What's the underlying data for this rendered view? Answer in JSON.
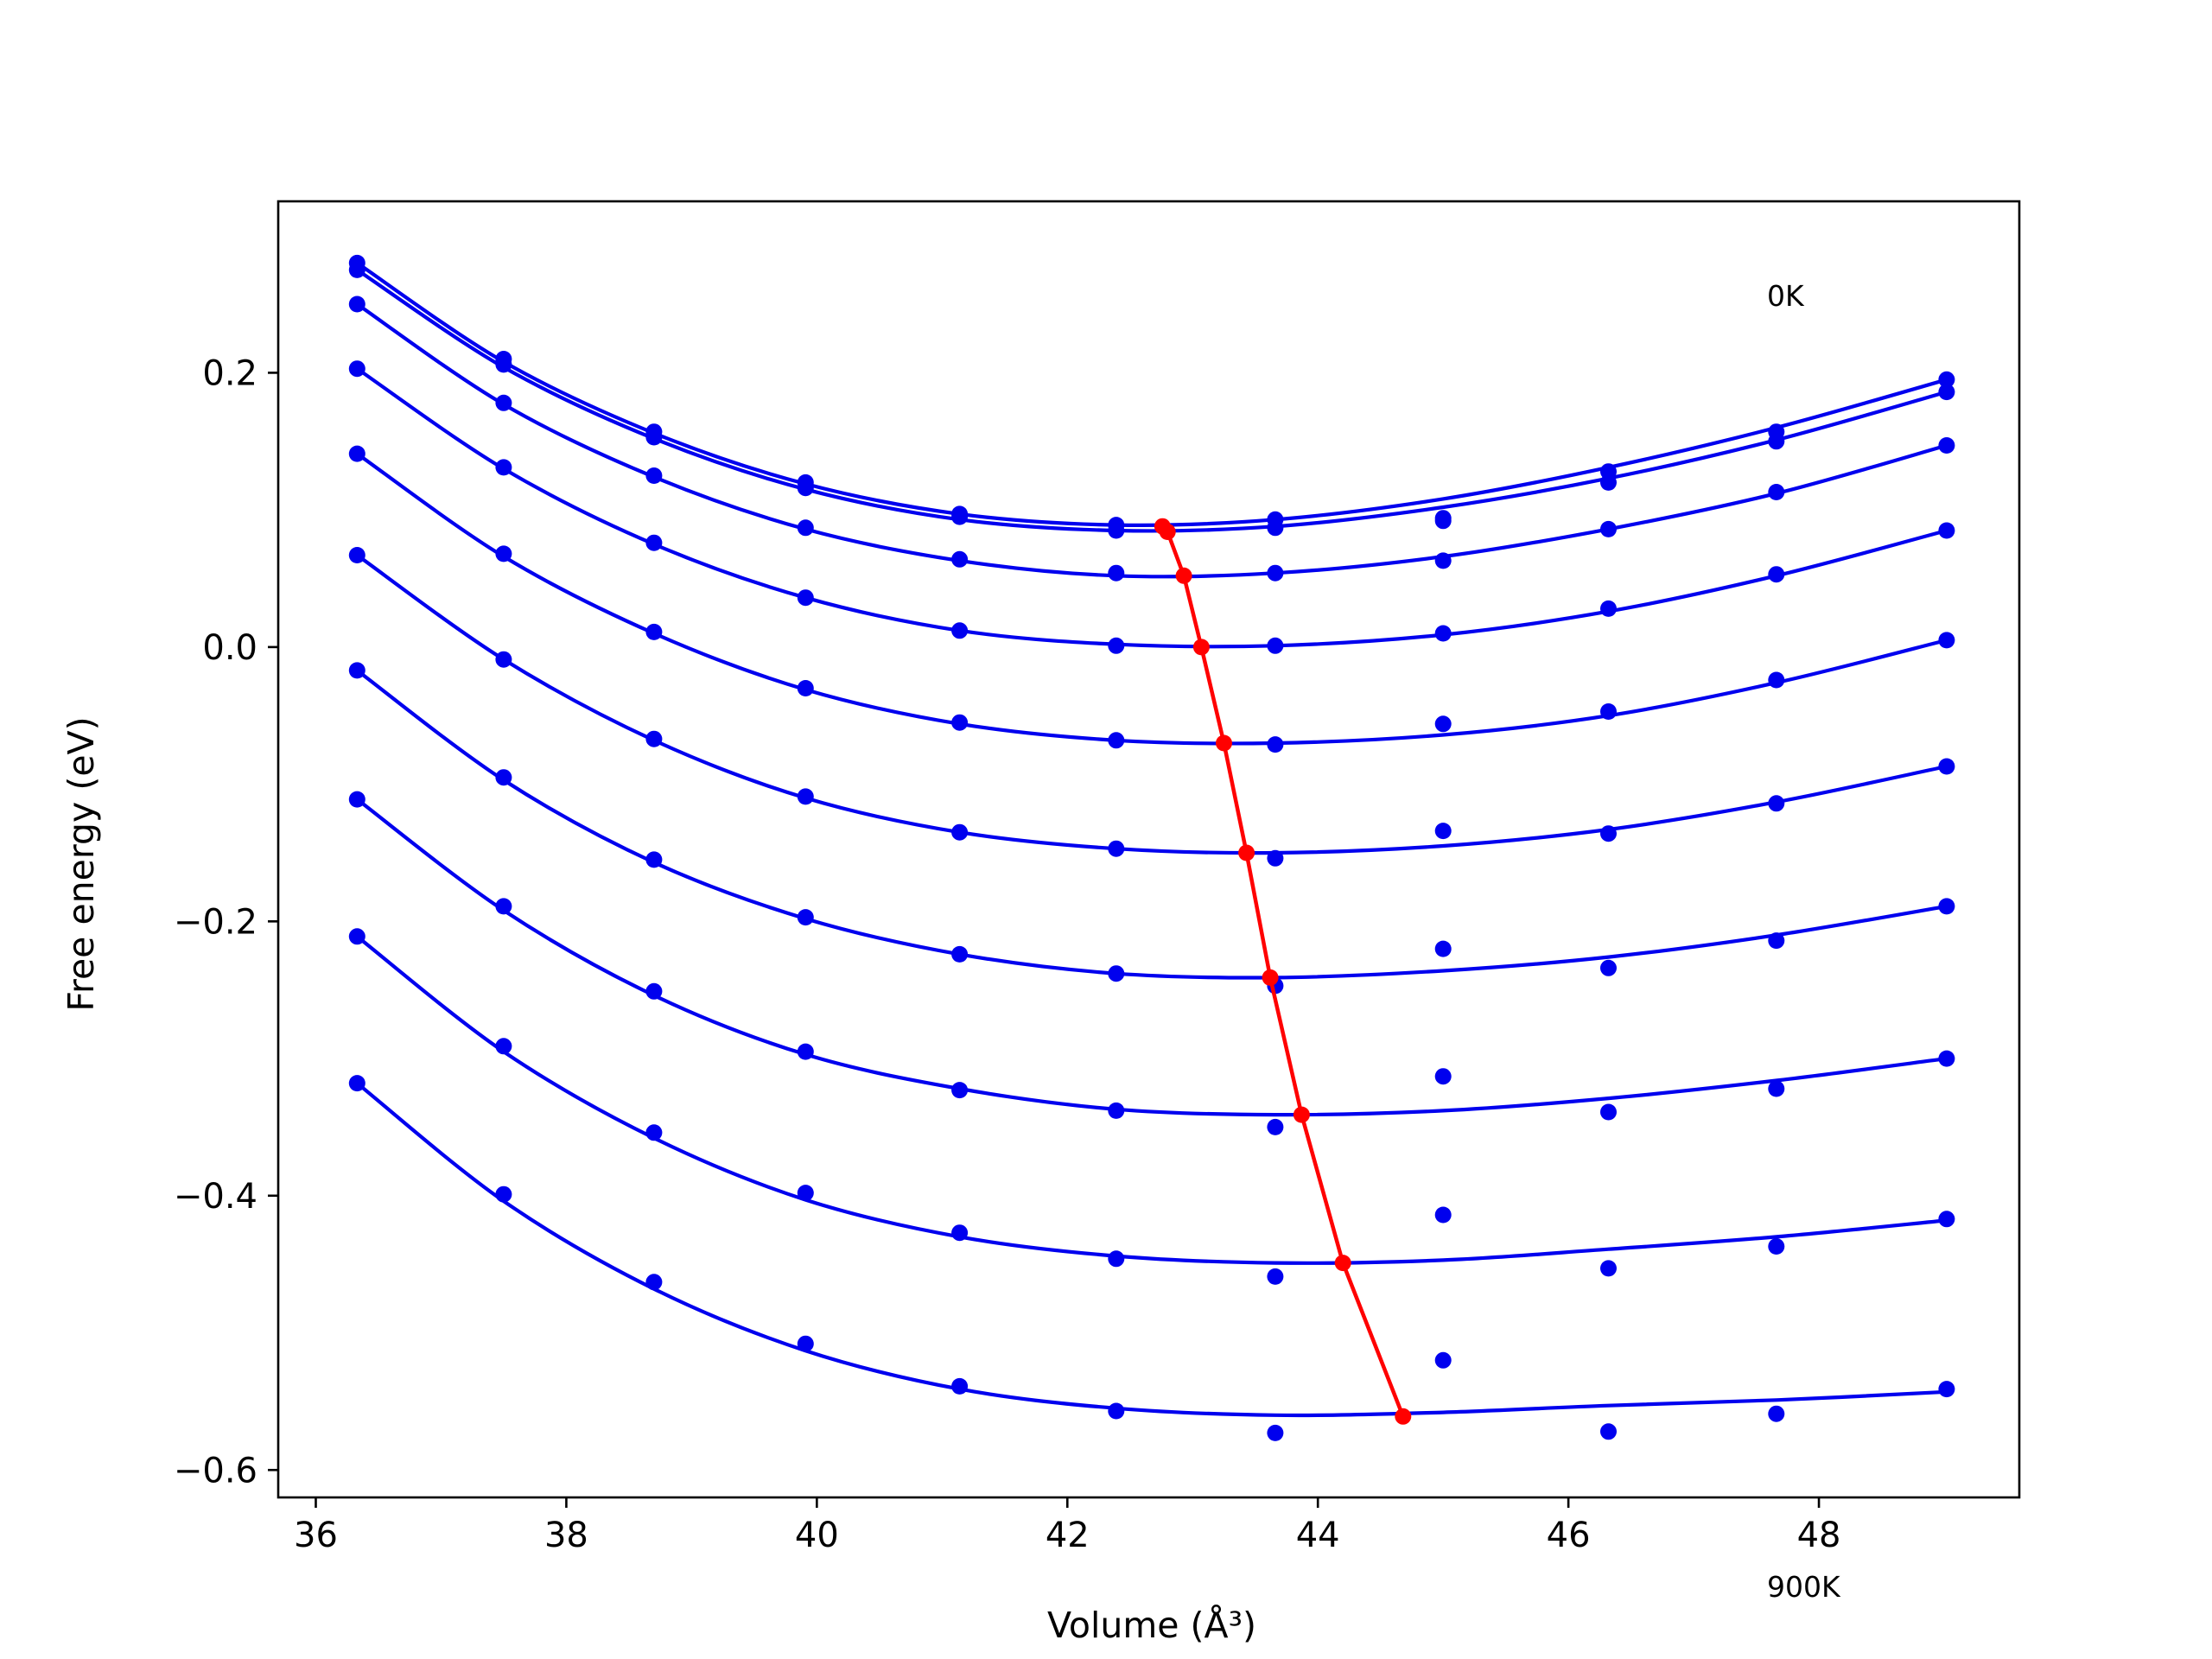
{
  "chart_data": {
    "type": "scatter",
    "xlabel": "Volume (Å³)",
    "ylabel": "Free energy (eV)",
    "xlim": [
      35.7,
      49.6
    ],
    "ylim": [
      -0.62,
      0.325
    ],
    "x_ticks": [
      36,
      38,
      40,
      42,
      44,
      46,
      48
    ],
    "y_ticks": [
      -0.6,
      -0.4,
      -0.2,
      0.0,
      0.2
    ],
    "x_tick_labels": [
      "36",
      "38",
      "40",
      "42",
      "44",
      "46",
      "48"
    ],
    "y_tick_labels": [
      "−0.6",
      "−0.4",
      "−0.2",
      "0.0",
      "0.2"
    ],
    "grid": false,
    "annotations": {
      "top": "0K",
      "bottom": "900K"
    },
    "colors": {
      "data": "#0000ee",
      "equilibrium": "#ff0000",
      "frame": "#000000"
    },
    "x": [
      36.33,
      37.5,
      38.7,
      39.91,
      41.14,
      42.39,
      43.66,
      45.0,
      46.32,
      47.66,
      49.02
    ],
    "series": [
      {
        "values": [
          0.28,
          0.21,
          0.157,
          0.12,
          0.097,
          0.089,
          0.093,
          0.094,
          0.128,
          0.157,
          0.195
        ],
        "fit": [
          0.28,
          0.208,
          0.156,
          0.119,
          0.097,
          0.089,
          0.093,
          0.108,
          0.131,
          0.16,
          0.195
        ]
      },
      {
        "values": [
          0.275,
          0.206,
          0.153,
          0.116,
          0.095,
          0.085,
          0.087,
          0.092,
          0.12,
          0.15,
          0.186
        ],
        "fit": [
          0.275,
          0.204,
          0.152,
          0.115,
          0.093,
          0.085,
          0.088,
          0.102,
          0.123,
          0.151,
          0.186
        ]
      },
      {
        "values": [
          0.25,
          0.178,
          0.125,
          0.087,
          0.064,
          0.054,
          0.054,
          0.063,
          0.086,
          0.113,
          0.147
        ],
        "fit": [
          0.25,
          0.177,
          0.124,
          0.086,
          0.063,
          0.052,
          0.054,
          0.066,
          0.086,
          0.112,
          0.147
        ]
      },
      {
        "values": [
          0.203,
          0.131,
          0.076,
          0.036,
          0.012,
          0.001,
          0.001,
          0.01,
          0.028,
          0.053,
          0.085
        ],
        "fit": [
          0.203,
          0.13,
          0.075,
          0.036,
          0.012,
          0.002,
          0.001,
          0.009,
          0.026,
          0.052,
          0.085
        ]
      },
      {
        "values": [
          0.141,
          0.068,
          0.011,
          -0.03,
          -0.055,
          -0.068,
          -0.071,
          -0.056,
          -0.047,
          -0.024,
          0.005
        ],
        "fit": [
          0.141,
          0.066,
          0.01,
          -0.031,
          -0.056,
          -0.068,
          -0.07,
          -0.064,
          -0.05,
          -0.026,
          0.005
        ]
      },
      {
        "values": [
          0.067,
          -0.009,
          -0.067,
          -0.109,
          -0.135,
          -0.147,
          -0.154,
          -0.134,
          -0.136,
          -0.114,
          -0.087
        ],
        "fit": [
          0.067,
          -0.009,
          -0.068,
          -0.11,
          -0.135,
          -0.147,
          -0.15,
          -0.145,
          -0.133,
          -0.113,
          -0.087
        ]
      },
      {
        "values": [
          -0.017,
          -0.095,
          -0.155,
          -0.197,
          -0.224,
          -0.238,
          -0.247,
          -0.22,
          -0.234,
          -0.214,
          -0.189
        ],
        "fit": [
          -0.017,
          -0.097,
          -0.157,
          -0.198,
          -0.224,
          -0.238,
          -0.241,
          -0.236,
          -0.226,
          -0.21,
          -0.189
        ]
      },
      {
        "values": [
          -0.111,
          -0.189,
          -0.251,
          -0.295,
          -0.323,
          -0.338,
          -0.35,
          -0.313,
          -0.339,
          -0.322,
          -0.3
        ],
        "fit": [
          -0.111,
          -0.192,
          -0.254,
          -0.297,
          -0.322,
          -0.337,
          -0.341,
          -0.338,
          -0.329,
          -0.316,
          -0.3
        ]
      },
      {
        "values": [
          -0.211,
          -0.291,
          -0.354,
          -0.398,
          -0.427,
          -0.446,
          -0.459,
          -0.414,
          -0.453,
          -0.437,
          -0.417
        ],
        "fit": [
          -0.211,
          -0.295,
          -0.358,
          -0.403,
          -0.43,
          -0.444,
          -0.449,
          -0.447,
          -0.439,
          -0.43,
          -0.418
        ]
      },
      {
        "values": [
          -0.318,
          -0.399,
          -0.463,
          -0.508,
          -0.539,
          -0.557,
          -0.573,
          -0.52,
          -0.572,
          -0.559,
          -0.541
        ],
        "fit": [
          -0.318,
          -0.404,
          -0.468,
          -0.513,
          -0.541,
          -0.555,
          -0.56,
          -0.558,
          -0.553,
          -0.549,
          -0.543
        ]
      }
    ],
    "equilibrium": {
      "x": [
        42.76,
        42.8,
        42.93,
        43.07,
        43.25,
        43.43,
        43.62,
        43.87,
        44.2,
        44.68
      ],
      "y": [
        0.088,
        0.084,
        0.052,
        0.0,
        -0.07,
        -0.15,
        -0.241,
        -0.341,
        -0.449,
        -0.561
      ]
    }
  }
}
